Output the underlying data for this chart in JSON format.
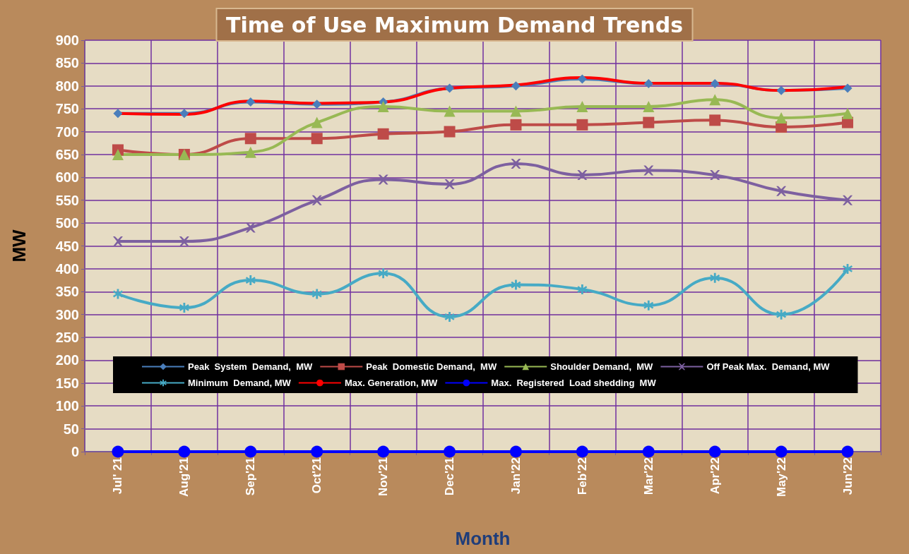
{
  "chart_data": {
    "type": "line",
    "title": "Time of Use Maximum Demand Trends",
    "xlabel": "Month",
    "ylabel": "MW",
    "categories": [
      "Jul' 21",
      "Aug'21",
      "Sep'21",
      "Oct'21",
      "Nov'21",
      "Dec'21",
      "Jan'22",
      "Feb'22",
      "Mar'22",
      "Apr'22",
      "May'22",
      "Jun'22"
    ],
    "series": [
      {
        "name": "Peak  System  Demand,  MW",
        "color": "#4a7ebb",
        "marker": "diamond",
        "values": [
          740,
          740,
          765,
          760,
          765,
          795,
          800,
          815,
          805,
          805,
          790,
          795
        ]
      },
      {
        "name": "Peak  Domestic Demand,  MW",
        "color": "#be4b48",
        "marker": "square",
        "values": [
          660,
          650,
          685,
          685,
          695,
          700,
          715,
          715,
          720,
          725,
          710,
          720
        ]
      },
      {
        "name": "Shoulder Demand,  MW",
        "color": "#98b954",
        "marker": "triangle",
        "values": [
          650,
          650,
          655,
          720,
          755,
          745,
          745,
          755,
          755,
          770,
          730,
          740
        ]
      },
      {
        "name": "Off Peak Max.  Demand, MW",
        "color": "#7d60a0",
        "marker": "cross",
        "values": [
          460,
          460,
          490,
          550,
          595,
          585,
          630,
          605,
          615,
          605,
          570,
          550
        ]
      },
      {
        "name": "Minimum  Demand, MW",
        "color": "#46aac5",
        "marker": "star",
        "values": [
          345,
          315,
          375,
          345,
          390,
          295,
          365,
          355,
          320,
          380,
          300,
          400
        ]
      },
      {
        "name": "Max. Generation, MW",
        "color": "#ff0000",
        "marker": "none",
        "values": [
          740,
          738,
          767,
          762,
          765,
          795,
          802,
          818,
          806,
          806,
          790,
          798
        ]
      },
      {
        "name": "Max.  Registered  Load shedding  MW",
        "color": "#0000ff",
        "marker": "circle",
        "values": [
          0,
          0,
          0,
          0,
          0,
          0,
          0,
          0,
          0,
          0,
          0,
          0
        ]
      }
    ],
    "ylim": [
      0,
      900
    ],
    "yticks": [
      0,
      50,
      100,
      150,
      200,
      250,
      300,
      350,
      400,
      450,
      500,
      550,
      600,
      650,
      700,
      750,
      800,
      850,
      900
    ],
    "grid": true,
    "legend": "bottom",
    "line_style": "solid"
  }
}
